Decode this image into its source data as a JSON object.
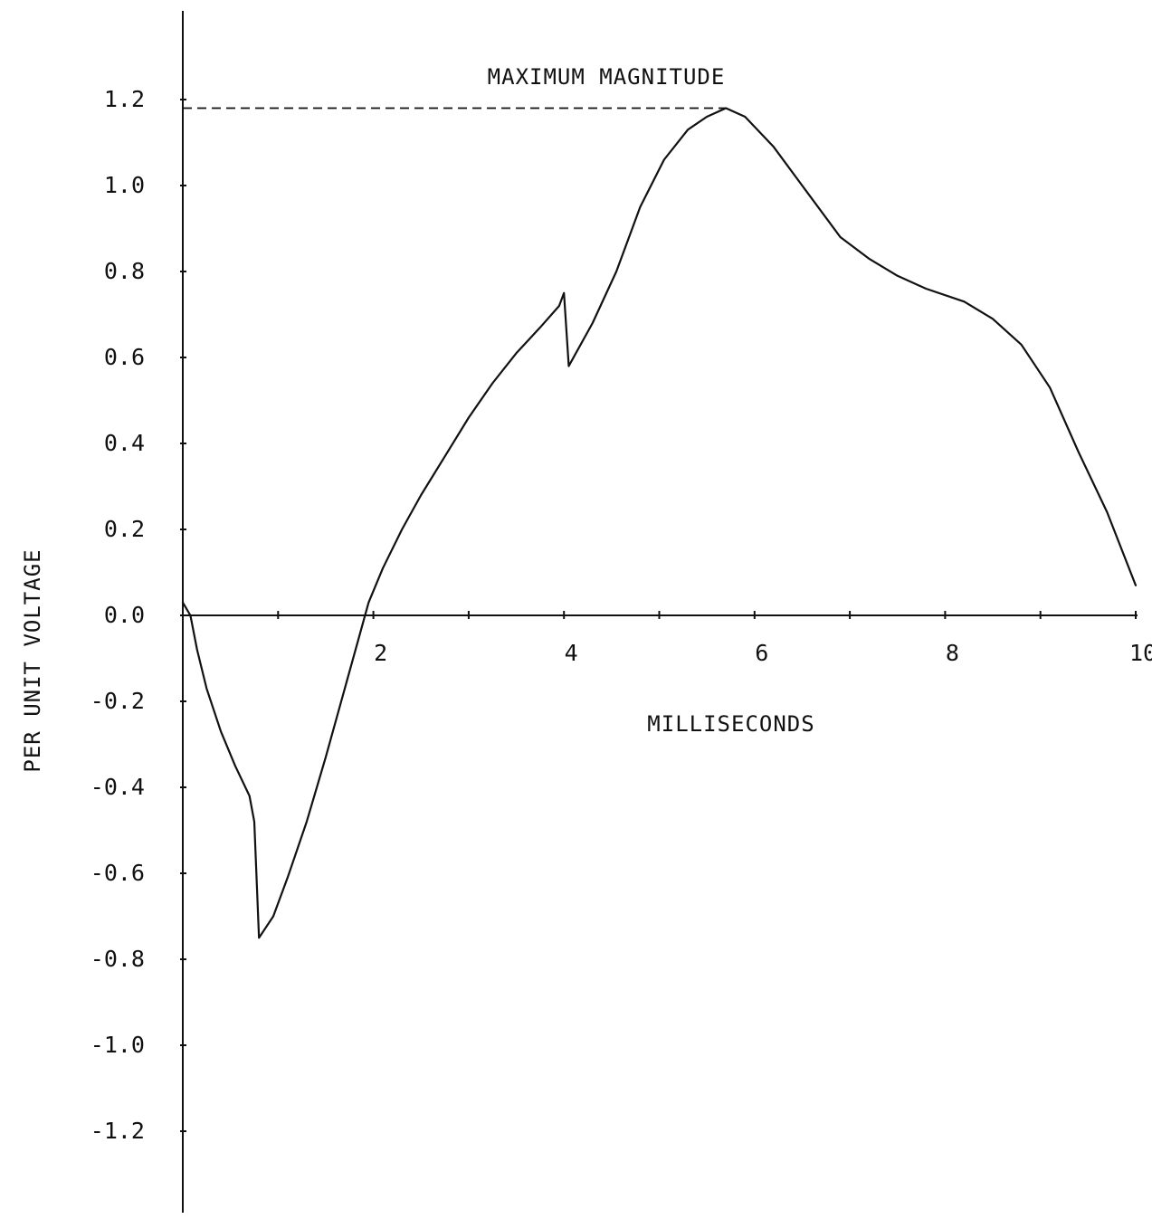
{
  "chart_data": {
    "type": "line",
    "title": "",
    "xlabel": "MILLISECONDS",
    "ylabel": "PER UNIT VOLTAGE",
    "xlim": [
      0,
      10
    ],
    "ylim": [
      -1.3,
      1.4
    ],
    "grid": false,
    "legend": "none",
    "x_ticks": [
      {
        "value": 1,
        "label": ""
      },
      {
        "value": 2,
        "label": "2"
      },
      {
        "value": 3,
        "label": ""
      },
      {
        "value": 4,
        "label": "4"
      },
      {
        "value": 5,
        "label": ""
      },
      {
        "value": 6,
        "label": "6"
      },
      {
        "value": 7,
        "label": ""
      },
      {
        "value": 8,
        "label": "8"
      },
      {
        "value": 9,
        "label": ""
      },
      {
        "value": 10,
        "label": "10"
      }
    ],
    "y_ticks": [
      {
        "value": 1.2,
        "label": "1.2"
      },
      {
        "value": 1.0,
        "label": "1.0"
      },
      {
        "value": 0.8,
        "label": "0.8"
      },
      {
        "value": 0.6,
        "label": "0.6"
      },
      {
        "value": 0.4,
        "label": "0.4"
      },
      {
        "value": 0.2,
        "label": "0.2"
      },
      {
        "value": 0.0,
        "label": "0.0"
      },
      {
        "value": -0.2,
        "label": "-0.2"
      },
      {
        "value": -0.4,
        "label": "-0.4"
      },
      {
        "value": -0.6,
        "label": "-0.6"
      },
      {
        "value": -0.8,
        "label": "-0.8"
      },
      {
        "value": -1.0,
        "label": "-1.0"
      },
      {
        "value": -1.2,
        "label": "-1.2"
      }
    ],
    "annotation": {
      "text": "MAXIMUM MAGNITUDE",
      "x": 5.7,
      "y": 1.18
    },
    "series": [
      {
        "color": "#111111",
        "points": [
          [
            0.0,
            0.03
          ],
          [
            0.08,
            0.0
          ],
          [
            0.15,
            -0.08
          ],
          [
            0.25,
            -0.17
          ],
          [
            0.4,
            -0.27
          ],
          [
            0.55,
            -0.35
          ],
          [
            0.7,
            -0.42
          ],
          [
            0.75,
            -0.48
          ],
          [
            0.8,
            -0.75
          ],
          [
            0.95,
            -0.7
          ],
          [
            1.1,
            -0.61
          ],
          [
            1.3,
            -0.48
          ],
          [
            1.5,
            -0.33
          ],
          [
            1.7,
            -0.17
          ],
          [
            1.85,
            -0.05
          ],
          [
            1.95,
            0.03
          ],
          [
            2.1,
            0.11
          ],
          [
            2.3,
            0.2
          ],
          [
            2.5,
            0.28
          ],
          [
            2.75,
            0.37
          ],
          [
            3.0,
            0.46
          ],
          [
            3.25,
            0.54
          ],
          [
            3.5,
            0.61
          ],
          [
            3.75,
            0.67
          ],
          [
            3.95,
            0.72
          ],
          [
            4.0,
            0.75
          ],
          [
            4.05,
            0.58
          ],
          [
            4.3,
            0.68
          ],
          [
            4.55,
            0.8
          ],
          [
            4.8,
            0.95
          ],
          [
            5.05,
            1.06
          ],
          [
            5.3,
            1.13
          ],
          [
            5.5,
            1.16
          ],
          [
            5.7,
            1.18
          ],
          [
            5.9,
            1.16
          ],
          [
            6.2,
            1.09
          ],
          [
            6.5,
            1.0
          ],
          [
            6.9,
            0.88
          ],
          [
            7.2,
            0.83
          ],
          [
            7.5,
            0.79
          ],
          [
            7.8,
            0.76
          ],
          [
            8.2,
            0.73
          ],
          [
            8.5,
            0.69
          ],
          [
            8.8,
            0.63
          ],
          [
            9.1,
            0.53
          ],
          [
            9.4,
            0.38
          ],
          [
            9.7,
            0.24
          ],
          [
            10.0,
            0.07
          ]
        ]
      }
    ]
  }
}
